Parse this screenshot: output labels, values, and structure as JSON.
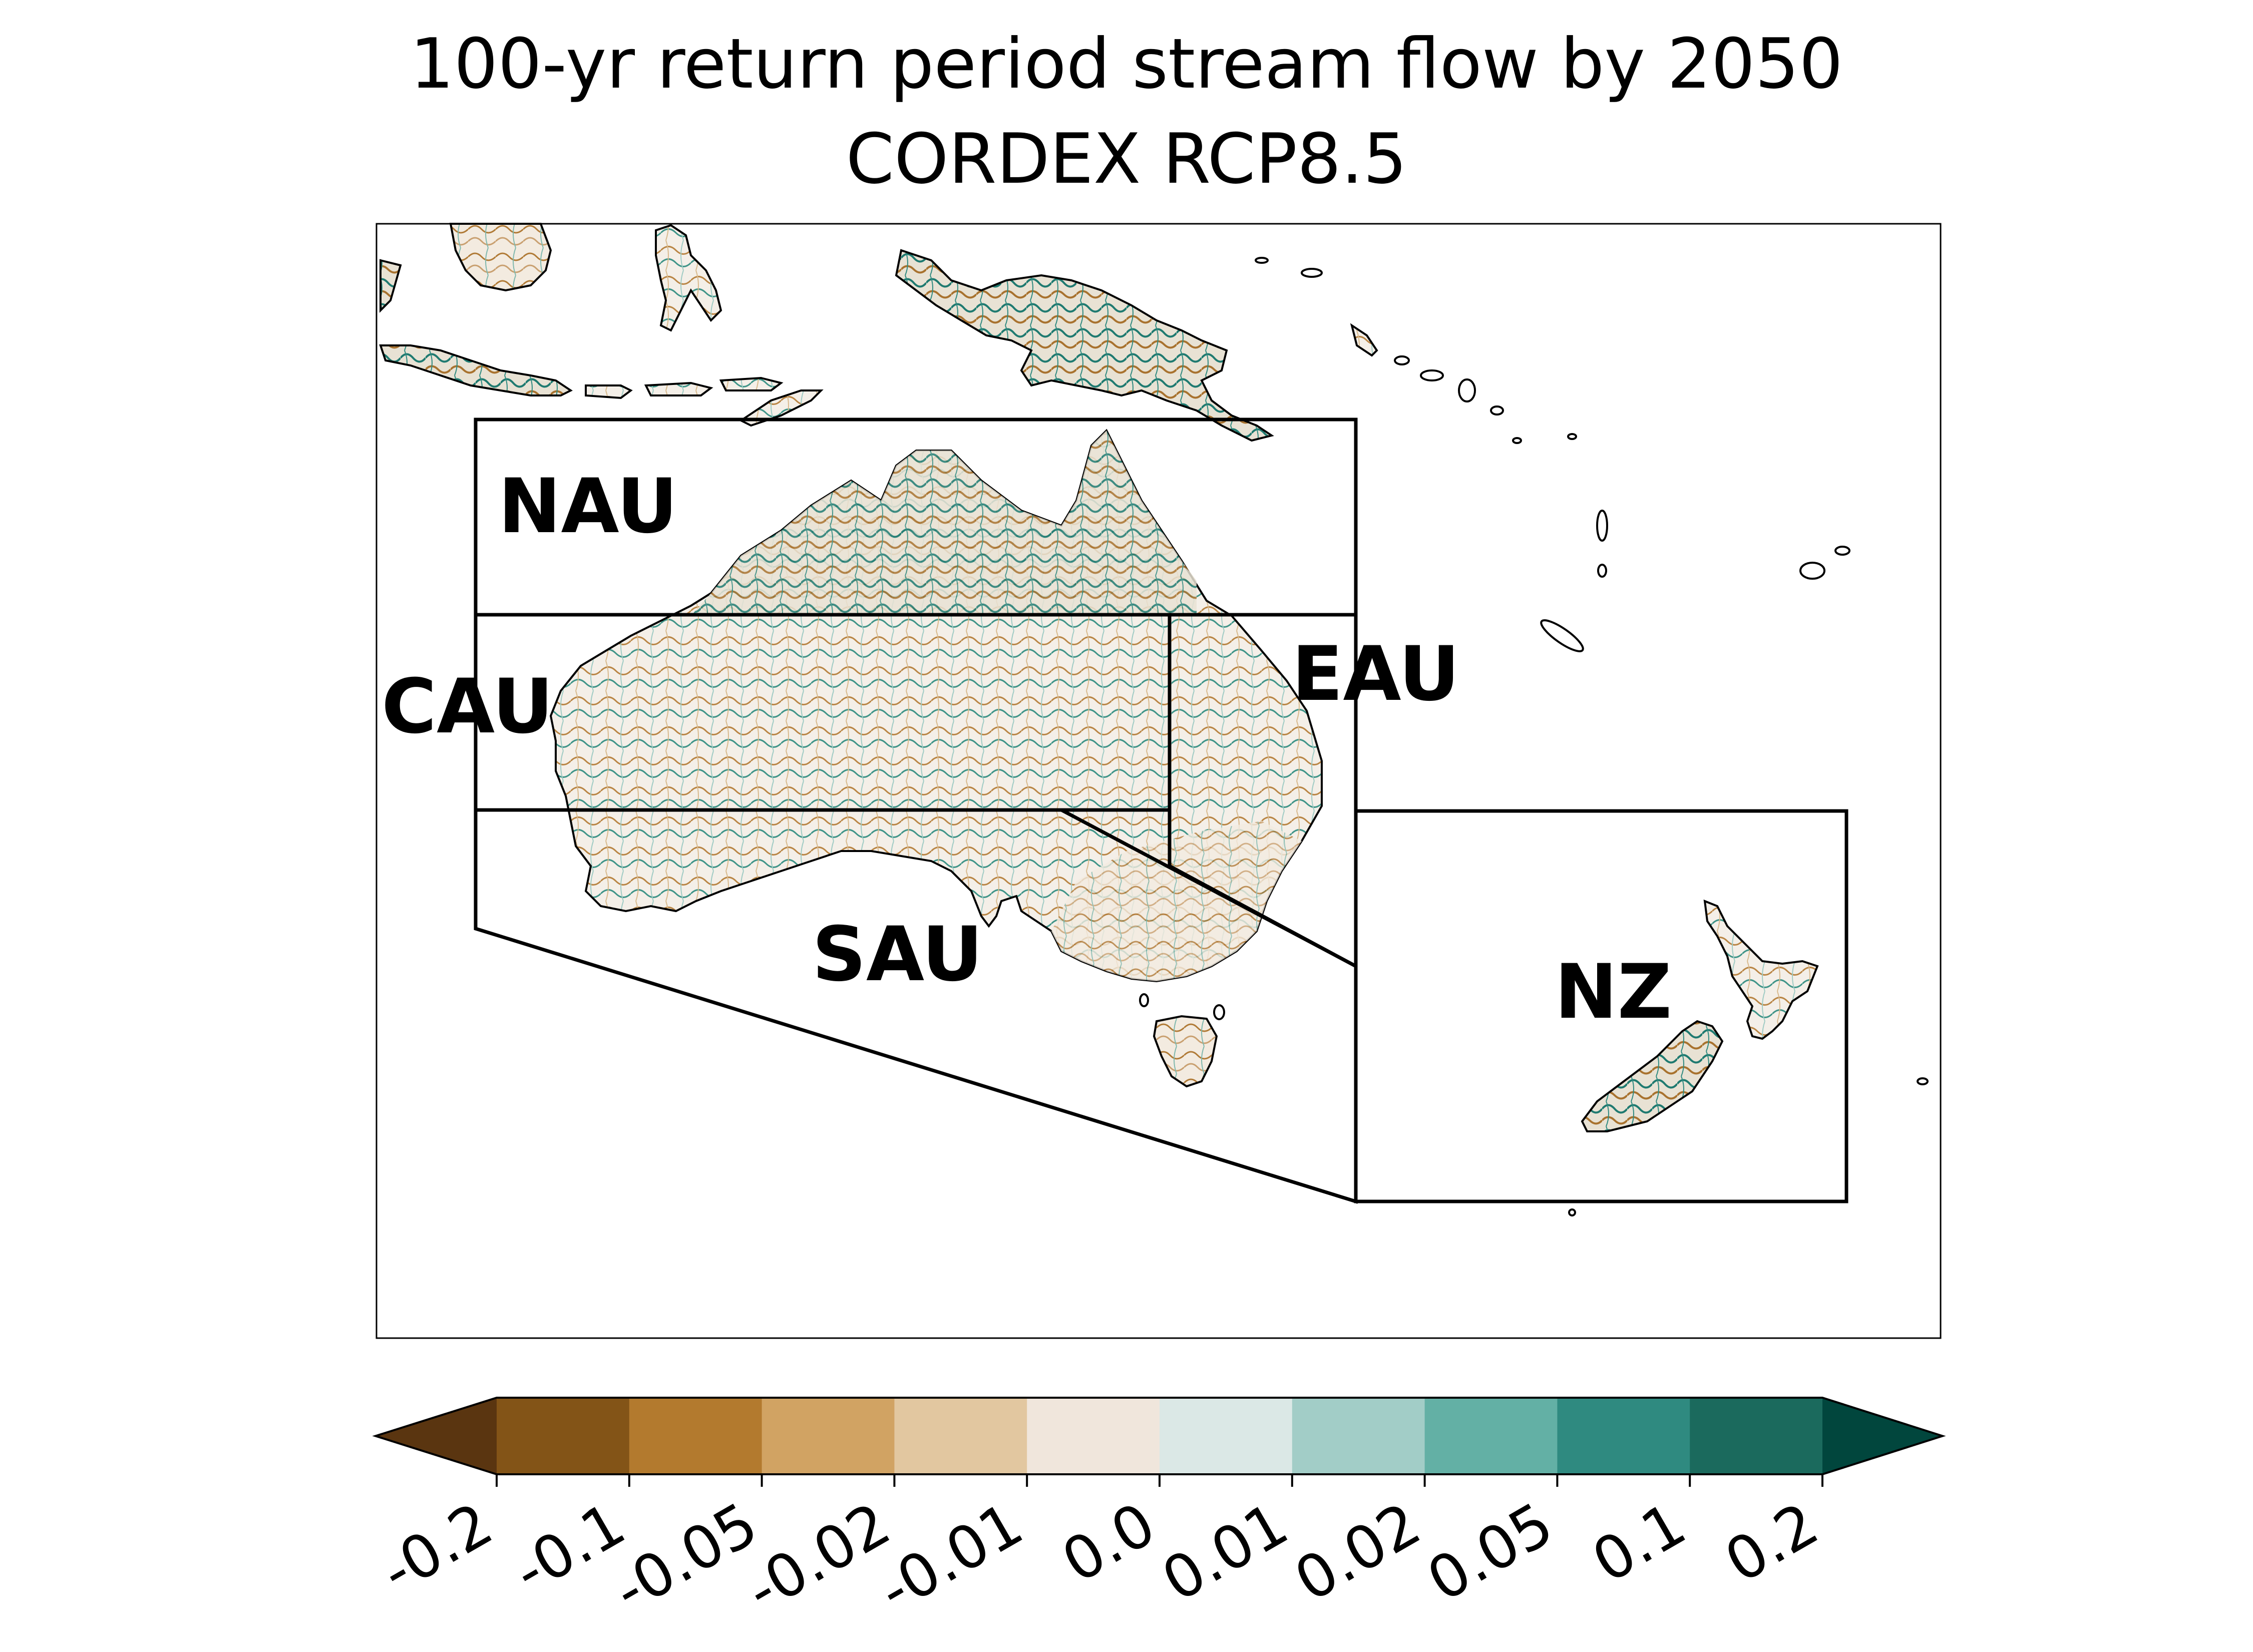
{
  "title": "100-yr return period stream flow by 2050",
  "subtitle": "CORDEX RCP8.5",
  "regions": {
    "nau": "NAU",
    "cau": "CAU",
    "eau": "EAU",
    "sau": "SAU",
    "nz": "NZ"
  },
  "colorbar": {
    "extend": "both",
    "ticks": [
      "-0.2",
      "-0.1",
      "-0.05",
      "-0.02",
      "-0.01",
      "0.0",
      "0.01",
      "0.02",
      "0.05",
      "0.1",
      "0.2"
    ],
    "colors": [
      "#5a3510",
      "#835417",
      "#b37a2e",
      "#d1a363",
      "#e2c7a0",
      "#f0e6dc",
      "#dbe8e6",
      "#a2cdc7",
      "#63b0a5",
      "#2f8a80",
      "#1b6a5d",
      "#01463d"
    ]
  }
}
